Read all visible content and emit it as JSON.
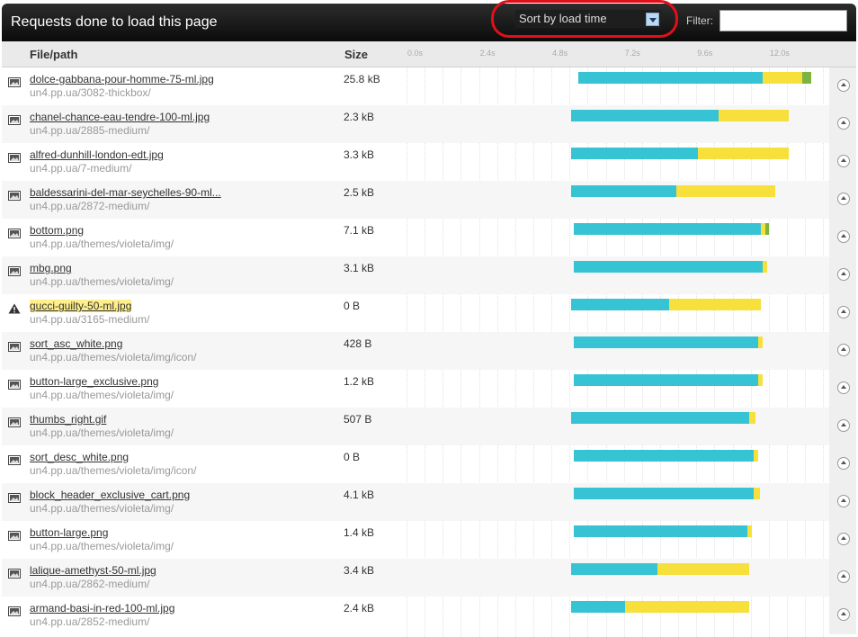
{
  "header": {
    "title": "Requests done to load this page"
  },
  "sort": {
    "label": "Sort by load time"
  },
  "filter": {
    "label": "Filter:",
    "value": ""
  },
  "columns": {
    "file": "File/path",
    "size": "Size"
  },
  "timeline": {
    "ticks": [
      "0.0s",
      "2.4s",
      "4.8s",
      "7.2s",
      "9.6s",
      "12.0s"
    ],
    "max_seconds": 14.0
  },
  "colors": {
    "connect": "#36c3d4",
    "wait": "#f7e03b",
    "receive": "#7cb342"
  },
  "rows": [
    {
      "name": "dolce-gabbana-pour-homme-75-ml.jpg",
      "path": "un4.pp.ua/3082-thickbox/",
      "size": "25.8 kB",
      "icon": "image-icon",
      "start": 5.7,
      "connect": 6.1,
      "wait": 1.3,
      "receive": 0.3
    },
    {
      "name": "chanel-chance-eau-tendre-100-ml.jpg",
      "path": "un4.pp.ua/2885-medium/",
      "size": "2.3 kB",
      "icon": "image-icon",
      "start": 5.45,
      "connect": 4.9,
      "wait": 2.3,
      "receive": 0
    },
    {
      "name": "alfred-dunhill-london-edt.jpg",
      "path": "un4.pp.ua/7-medium/",
      "size": "3.3 kB",
      "icon": "image-icon",
      "start": 5.45,
      "connect": 4.2,
      "wait": 3.0,
      "receive": 0
    },
    {
      "name": "baldessarini-del-mar-seychelles-90-ml...",
      "path": "un4.pp.ua/2872-medium/",
      "size": "2.5 kB",
      "icon": "image-icon",
      "start": 5.45,
      "connect": 3.5,
      "wait": 3.25,
      "receive": 0
    },
    {
      "name": "bottom.png",
      "path": "un4.pp.ua/themes/violeta/img/",
      "size": "7.1 kB",
      "icon": "image-icon",
      "start": 5.55,
      "connect": 6.2,
      "wait": 0.15,
      "receive": 0.1
    },
    {
      "name": "mbg.png",
      "path": "un4.pp.ua/themes/violeta/img/",
      "size": "3.1 kB",
      "icon": "image-icon",
      "start": 5.55,
      "connect": 6.25,
      "wait": 0.15,
      "receive": 0
    },
    {
      "name": "gucci-guilty-50-ml.jpg",
      "path": "un4.pp.ua/3165-medium/",
      "size": "0 B",
      "icon": "warning-icon",
      "start": 5.45,
      "connect": 3.25,
      "wait": 3.05,
      "receive": 0
    },
    {
      "name": "sort_asc_white.png",
      "path": "un4.pp.ua/themes/violeta/img/icon/",
      "size": "428 B",
      "icon": "image-icon",
      "start": 5.55,
      "connect": 6.1,
      "wait": 0.15,
      "receive": 0
    },
    {
      "name": "button-large_exclusive.png",
      "path": "un4.pp.ua/themes/violeta/img/",
      "size": "1.2 kB",
      "icon": "image-icon",
      "start": 5.55,
      "connect": 6.1,
      "wait": 0.15,
      "receive": 0
    },
    {
      "name": "thumbs_right.gif",
      "path": "un4.pp.ua/themes/violeta/img/",
      "size": "507 B",
      "icon": "image-icon",
      "start": 5.45,
      "connect": 5.9,
      "wait": 0.2,
      "receive": 0
    },
    {
      "name": "sort_desc_white.png",
      "path": "un4.pp.ua/themes/violeta/img/icon/",
      "size": "0 B",
      "icon": "image-icon",
      "start": 5.55,
      "connect": 5.95,
      "wait": 0.15,
      "receive": 0
    },
    {
      "name": "block_header_exclusive_cart.png",
      "path": "un4.pp.ua/themes/violeta/img/",
      "size": "4.1 kB",
      "icon": "image-icon",
      "start": 5.55,
      "connect": 5.95,
      "wait": 0.2,
      "receive": 0
    },
    {
      "name": "button-large.png",
      "path": "un4.pp.ua/themes/violeta/img/",
      "size": "1.4 kB",
      "icon": "image-icon",
      "start": 5.55,
      "connect": 5.75,
      "wait": 0.15,
      "receive": 0
    },
    {
      "name": "lalique-amethyst-50-ml.jpg",
      "path": "un4.pp.ua/2862-medium/",
      "size": "3.4 kB",
      "icon": "image-icon",
      "start": 5.45,
      "connect": 2.85,
      "wait": 3.05,
      "receive": 0
    },
    {
      "name": "armand-basi-in-red-100-ml.jpg",
      "path": "un4.pp.ua/2852-medium/",
      "size": "2.4 kB",
      "icon": "image-icon",
      "start": 5.45,
      "connect": 1.8,
      "wait": 4.1,
      "receive": 0
    }
  ]
}
